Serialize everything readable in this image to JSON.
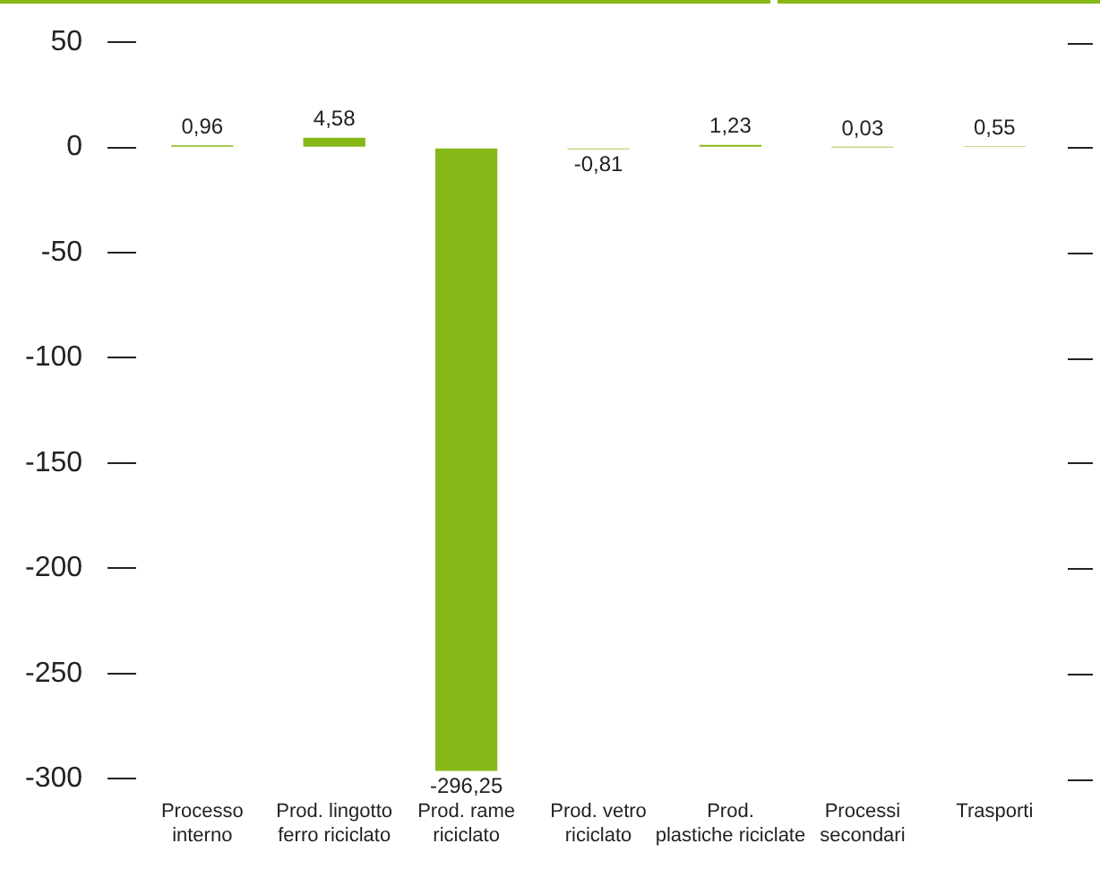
{
  "chart_data": {
    "type": "bar",
    "categories": [
      "Processo\ninterno",
      "Prod. lingotto\nferro riciclato",
      "Prod. rame\nriciclato",
      "Prod. vetro\nriciclato",
      "Prod.\nplastiche riciclate",
      "Processi\nsecondari",
      "Trasporti"
    ],
    "values": [
      0.96,
      4.58,
      -296.25,
      -0.81,
      1.23,
      0.03,
      0.55
    ],
    "value_labels": [
      "0,96",
      "4,58",
      "-296,25",
      "-0,81",
      "1,23",
      "0,03",
      "0,55"
    ],
    "color": "#86b817",
    "ylim": [
      -300,
      50
    ],
    "yticks": [
      50,
      0,
      -50,
      -100,
      -150,
      -200,
      -250,
      -300
    ],
    "grid": false,
    "legend": false
  }
}
